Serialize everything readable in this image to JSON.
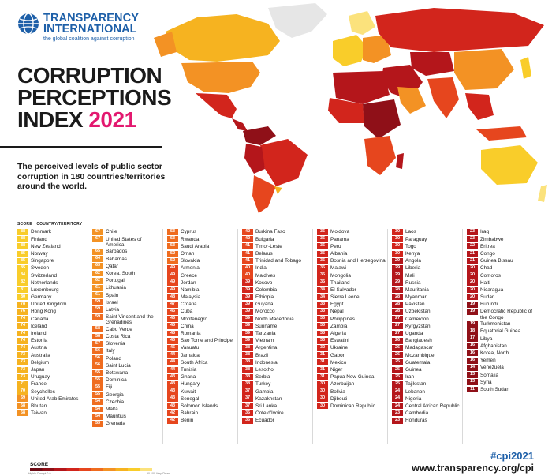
{
  "header": {
    "org_line1": "TRANSPARENCY",
    "org_line2": "INTERNATIONAL",
    "tagline": "the global coalition against corruption",
    "title_line1": "CORRUPTION",
    "title_line2": "PERCEPTIONS",
    "title_line3_text": "INDEX",
    "title_year": "2021",
    "subtitle": "The perceived levels of public sector corruption in 180 countries/territories around the world."
  },
  "table": {
    "score_header": "SCORE",
    "country_header": "COUNTRY/TERRITORY",
    "columns": [
      [
        {
          "score": 88,
          "name": "Denmark"
        },
        {
          "score": 88,
          "name": "Finland"
        },
        {
          "score": 88,
          "name": "New Zealand"
        },
        {
          "score": 85,
          "name": "Norway"
        },
        {
          "score": 85,
          "name": "Singapore"
        },
        {
          "score": 85,
          "name": "Sweden"
        },
        {
          "score": 84,
          "name": "Switzerland"
        },
        {
          "score": 82,
          "name": "Netherlands"
        },
        {
          "score": 81,
          "name": "Luxembourg"
        },
        {
          "score": 80,
          "name": "Germany"
        },
        {
          "score": 78,
          "name": "United Kingdom"
        },
        {
          "score": 76,
          "name": "Hong Kong"
        },
        {
          "score": 74,
          "name": "Canada"
        },
        {
          "score": 74,
          "name": "Iceland"
        },
        {
          "score": 74,
          "name": "Ireland"
        },
        {
          "score": 74,
          "name": "Estonia"
        },
        {
          "score": 74,
          "name": "Austria"
        },
        {
          "score": 73,
          "name": "Australia"
        },
        {
          "score": 73,
          "name": "Belgium"
        },
        {
          "score": 73,
          "name": "Japan"
        },
        {
          "score": 73,
          "name": "Uruguay"
        },
        {
          "score": 71,
          "name": "France"
        },
        {
          "score": 70,
          "name": "Seychelles"
        },
        {
          "score": 69,
          "name": "United Arab Emirates"
        },
        {
          "score": 68,
          "name": "Bhutan"
        },
        {
          "score": 68,
          "name": "Taiwan"
        }
      ],
      [
        {
          "score": 67,
          "name": "Chile"
        },
        {
          "score": 67,
          "name": "United States of America"
        },
        {
          "score": 65,
          "name": "Barbados"
        },
        {
          "score": 64,
          "name": "Bahamas"
        },
        {
          "score": 63,
          "name": "Qatar"
        },
        {
          "score": 62,
          "name": "Korea, South"
        },
        {
          "score": 62,
          "name": "Portugal"
        },
        {
          "score": 61,
          "name": "Lithuania"
        },
        {
          "score": 61,
          "name": "Spain"
        },
        {
          "score": 59,
          "name": "Israel"
        },
        {
          "score": 59,
          "name": "Latvia"
        },
        {
          "score": 59,
          "name": "Saint Vincent and the Grenadines"
        },
        {
          "score": 58,
          "name": "Cabo Verde"
        },
        {
          "score": 58,
          "name": "Costa Rica"
        },
        {
          "score": 57,
          "name": "Slovenia"
        },
        {
          "score": 56,
          "name": "Italy"
        },
        {
          "score": 56,
          "name": "Poland"
        },
        {
          "score": 56,
          "name": "Saint Lucia"
        },
        {
          "score": 55,
          "name": "Botswana"
        },
        {
          "score": 55,
          "name": "Dominica"
        },
        {
          "score": 55,
          "name": "Fiji"
        },
        {
          "score": 55,
          "name": "Georgia"
        },
        {
          "score": 54,
          "name": "Czechia"
        },
        {
          "score": 54,
          "name": "Malta"
        },
        {
          "score": 54,
          "name": "Mauritius"
        },
        {
          "score": 53,
          "name": "Grenada"
        }
      ],
      [
        {
          "score": 53,
          "name": "Cyprus"
        },
        {
          "score": 53,
          "name": "Rwanda"
        },
        {
          "score": 53,
          "name": "Saudi Arabia"
        },
        {
          "score": 52,
          "name": "Oman"
        },
        {
          "score": 52,
          "name": "Slovakia"
        },
        {
          "score": 49,
          "name": "Armenia"
        },
        {
          "score": 49,
          "name": "Greece"
        },
        {
          "score": 49,
          "name": "Jordan"
        },
        {
          "score": 49,
          "name": "Namibia"
        },
        {
          "score": 48,
          "name": "Malaysia"
        },
        {
          "score": 47,
          "name": "Croatia"
        },
        {
          "score": 46,
          "name": "Cuba"
        },
        {
          "score": 46,
          "name": "Montenegro"
        },
        {
          "score": 45,
          "name": "China"
        },
        {
          "score": 45,
          "name": "Romania"
        },
        {
          "score": 45,
          "name": "Sao Tome and Principe"
        },
        {
          "score": 45,
          "name": "Vanuatu"
        },
        {
          "score": 44,
          "name": "Jamaica"
        },
        {
          "score": 44,
          "name": "South Africa"
        },
        {
          "score": 44,
          "name": "Tunisia"
        },
        {
          "score": 43,
          "name": "Ghana"
        },
        {
          "score": 43,
          "name": "Hungary"
        },
        {
          "score": 43,
          "name": "Kuwait"
        },
        {
          "score": 43,
          "name": "Senegal"
        },
        {
          "score": 43,
          "name": "Solomon Islands"
        },
        {
          "score": 42,
          "name": "Bahrain"
        },
        {
          "score": 42,
          "name": "Benin"
        }
      ],
      [
        {
          "score": 42,
          "name": "Burkina Faso"
        },
        {
          "score": 42,
          "name": "Bulgaria"
        },
        {
          "score": 41,
          "name": "Timor-Leste"
        },
        {
          "score": 41,
          "name": "Belarus"
        },
        {
          "score": 41,
          "name": "Trinidad and Tobago"
        },
        {
          "score": 40,
          "name": "India"
        },
        {
          "score": 40,
          "name": "Maldives"
        },
        {
          "score": 39,
          "name": "Kosovo"
        },
        {
          "score": 39,
          "name": "Colombia"
        },
        {
          "score": 39,
          "name": "Ethiopia"
        },
        {
          "score": 39,
          "name": "Guyana"
        },
        {
          "score": 39,
          "name": "Morocco"
        },
        {
          "score": 39,
          "name": "North Macedonia"
        },
        {
          "score": 39,
          "name": "Suriname"
        },
        {
          "score": 39,
          "name": "Tanzania"
        },
        {
          "score": 39,
          "name": "Vietnam"
        },
        {
          "score": 38,
          "name": "Argentina"
        },
        {
          "score": 38,
          "name": "Brazil"
        },
        {
          "score": 38,
          "name": "Indonesia"
        },
        {
          "score": 38,
          "name": "Lesotho"
        },
        {
          "score": 38,
          "name": "Serbia"
        },
        {
          "score": 38,
          "name": "Turkey"
        },
        {
          "score": 37,
          "name": "Gambia"
        },
        {
          "score": 37,
          "name": "Kazakhstan"
        },
        {
          "score": 37,
          "name": "Sri Lanka"
        },
        {
          "score": 36,
          "name": "Cote d'Ivoire"
        },
        {
          "score": 36,
          "name": "Ecuador"
        }
      ],
      [
        {
          "score": 36,
          "name": "Moldova"
        },
        {
          "score": 36,
          "name": "Panama"
        },
        {
          "score": 36,
          "name": "Peru"
        },
        {
          "score": 35,
          "name": "Albania"
        },
        {
          "score": 35,
          "name": "Bosnia and Herzegovina"
        },
        {
          "score": 35,
          "name": "Malawi"
        },
        {
          "score": 35,
          "name": "Mongolia"
        },
        {
          "score": 35,
          "name": "Thailand"
        },
        {
          "score": 34,
          "name": "El Salvador"
        },
        {
          "score": 34,
          "name": "Sierra Leone"
        },
        {
          "score": 33,
          "name": "Egypt"
        },
        {
          "score": 33,
          "name": "Nepal"
        },
        {
          "score": 33,
          "name": "Philippines"
        },
        {
          "score": 33,
          "name": "Zambia"
        },
        {
          "score": 33,
          "name": "Algeria"
        },
        {
          "score": 33,
          "name": "Eswatini"
        },
        {
          "score": 32,
          "name": "Ukraine"
        },
        {
          "score": 31,
          "name": "Gabon"
        },
        {
          "score": 31,
          "name": "Mexico"
        },
        {
          "score": 31,
          "name": "Niger"
        },
        {
          "score": 31,
          "name": "Papua New Guinea"
        },
        {
          "score": 30,
          "name": "Azerbaijan"
        },
        {
          "score": 30,
          "name": "Bolivia"
        },
        {
          "score": 30,
          "name": "Djibouti"
        },
        {
          "score": 30,
          "name": "Dominican Republic"
        }
      ],
      [
        {
          "score": 30,
          "name": "Laos"
        },
        {
          "score": 30,
          "name": "Paraguay"
        },
        {
          "score": 30,
          "name": "Togo"
        },
        {
          "score": 30,
          "name": "Kenya"
        },
        {
          "score": 29,
          "name": "Angola"
        },
        {
          "score": 29,
          "name": "Liberia"
        },
        {
          "score": 29,
          "name": "Mali"
        },
        {
          "score": 29,
          "name": "Russia"
        },
        {
          "score": 28,
          "name": "Mauritania"
        },
        {
          "score": 28,
          "name": "Myanmar"
        },
        {
          "score": 28,
          "name": "Pakistan"
        },
        {
          "score": 28,
          "name": "Uzbekistan"
        },
        {
          "score": 27,
          "name": "Cameroon"
        },
        {
          "score": 27,
          "name": "Kyrgyzstan"
        },
        {
          "score": 27,
          "name": "Uganda"
        },
        {
          "score": 26,
          "name": "Bangladesh"
        },
        {
          "score": 26,
          "name": "Madagascar"
        },
        {
          "score": 26,
          "name": "Mozambique"
        },
        {
          "score": 25,
          "name": "Guatemala"
        },
        {
          "score": 25,
          "name": "Guinea"
        },
        {
          "score": 25,
          "name": "Iran"
        },
        {
          "score": 25,
          "name": "Tajikistan"
        },
        {
          "score": 24,
          "name": "Lebanon"
        },
        {
          "score": 24,
          "name": "Nigeria"
        },
        {
          "score": 24,
          "name": "Central African Republic"
        },
        {
          "score": 23,
          "name": "Cambodia"
        },
        {
          "score": 23,
          "name": "Honduras"
        }
      ],
      [
        {
          "score": 23,
          "name": "Iraq"
        },
        {
          "score": 23,
          "name": "Zimbabwe"
        },
        {
          "score": 22,
          "name": "Eritrea"
        },
        {
          "score": 21,
          "name": "Congo"
        },
        {
          "score": 21,
          "name": "Guinea Bissau"
        },
        {
          "score": 20,
          "name": "Chad"
        },
        {
          "score": 20,
          "name": "Comoros"
        },
        {
          "score": 20,
          "name": "Haiti"
        },
        {
          "score": 20,
          "name": "Nicaragua"
        },
        {
          "score": 20,
          "name": "Sudan"
        },
        {
          "score": 19,
          "name": "Burundi"
        },
        {
          "score": 19,
          "name": "Democratic Republic of the Congo"
        },
        {
          "score": 19,
          "name": "Turkmenistan"
        },
        {
          "score": 18,
          "name": "Equatorial Guinea"
        },
        {
          "score": 17,
          "name": "Libya"
        },
        {
          "score": 16,
          "name": "Afghanistan"
        },
        {
          "score": 16,
          "name": "Korea, North"
        },
        {
          "score": 16,
          "name": "Yemen"
        },
        {
          "score": 14,
          "name": "Venezuela"
        },
        {
          "score": 13,
          "name": "Somalia"
        },
        {
          "score": 13,
          "name": "Syria"
        },
        {
          "score": 11,
          "name": "South Sudan"
        }
      ]
    ]
  },
  "legend": {
    "label": "SCORE",
    "low_label": "Highly Corrupt",
    "high_label": "Very Clean",
    "low_value": "0-9",
    "high_value": "90-100"
  },
  "footer": {
    "hashtag": "#cpi2021",
    "url": "www.transparency.org/cpi"
  },
  "colors": {
    "brand_blue": "#1d5fa8",
    "year_pink": "#e3186f",
    "scale": [
      "#6d0a14",
      "#8f1018",
      "#b4161b",
      "#d2251c",
      "#e6461e",
      "#ef6c1f",
      "#f39224",
      "#f6b320",
      "#f9cd2a",
      "#fbe27c"
    ]
  }
}
